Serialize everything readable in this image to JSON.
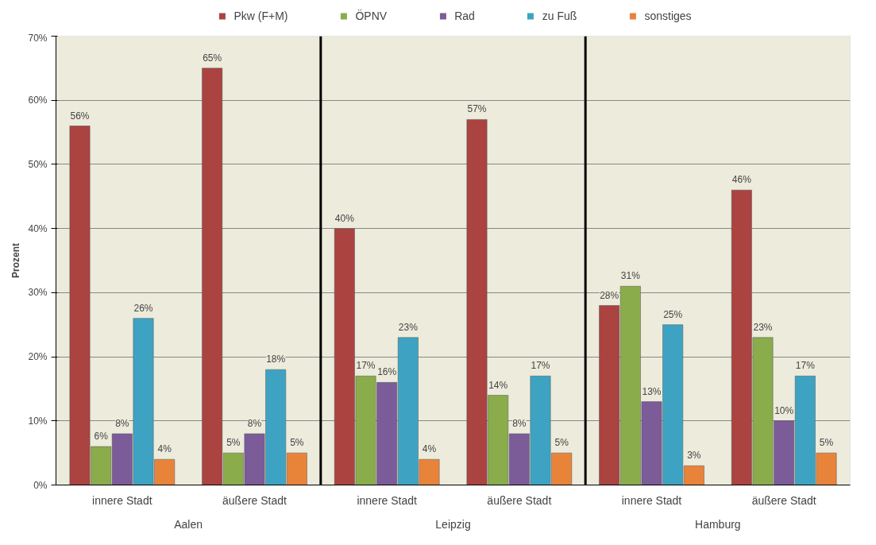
{
  "chart_data": {
    "type": "bar",
    "ylabel": "Prozent",
    "categories": [
      "innere Stadt",
      "äußere Stadt",
      "innere Stadt",
      "äußere Stadt",
      "innere Stadt",
      "äußere Stadt"
    ],
    "annotations": [
      "Aalen",
      "Leipzig",
      "Hamburg"
    ],
    "series": [
      {
        "name": "Pkw (F+M)",
        "color": "#ab4341",
        "values": [
          56,
          65,
          40,
          57,
          28,
          46
        ],
        "value_labels": [
          "56%",
          "65%",
          "40%",
          "57%",
          "28%",
          "46%"
        ]
      },
      {
        "name": "ÖPNV",
        "color": "#8aac4a",
        "values": [
          6,
          5,
          17,
          14,
          31,
          23
        ],
        "value_labels": [
          "6%",
          "5%",
          "17%",
          "14%",
          "31%",
          "23%"
        ]
      },
      {
        "name": "Rad",
        "color": "#7b5c98",
        "values": [
          8,
          8,
          16,
          8,
          13,
          10
        ],
        "value_labels": [
          "8%",
          "8%",
          "16%",
          "8%",
          "13%",
          "10%"
        ]
      },
      {
        "name": "zu Fuß",
        "color": "#3ea3c3",
        "values": [
          26,
          18,
          23,
          17,
          25,
          17
        ],
        "value_labels": [
          "26%",
          "18%",
          "23%",
          "17%",
          "25%",
          "17%"
        ]
      },
      {
        "name": "sonstiges",
        "color": "#e8843a",
        "values": [
          4,
          5,
          4,
          5,
          3,
          5
        ],
        "value_labels": [
          "4%",
          "5%",
          "4%",
          "5%",
          "3%",
          "5%"
        ]
      }
    ],
    "ylim": [
      0,
      70
    ],
    "yticks": [
      {
        "value": 0,
        "label": "0%"
      },
      {
        "value": 10,
        "label": "10%"
      },
      {
        "value": 20,
        "label": "20%"
      },
      {
        "value": 30,
        "label": "30%"
      },
      {
        "value": 40,
        "label": "40%"
      },
      {
        "value": 50,
        "label": "50%"
      },
      {
        "value": 60,
        "label": "60%"
      },
      {
        "value": 70,
        "label": "70%"
      }
    ],
    "grid": "y",
    "legend": "top"
  }
}
